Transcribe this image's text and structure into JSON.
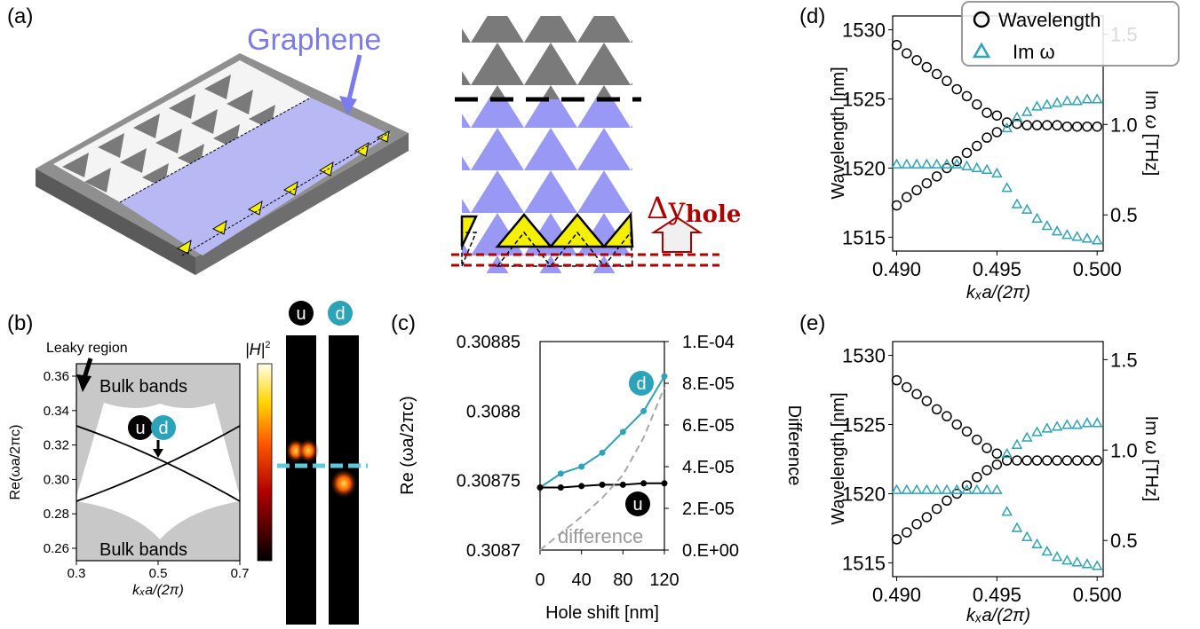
{
  "panels": {
    "a": {
      "label": "(a)",
      "graphene_label": "Graphene",
      "delta_y": "Δy",
      "delta_sub": "hole"
    },
    "b": {
      "label": "(b)",
      "leaky_region": "Leaky region",
      "bulk_top": "Bulk bands",
      "bulk_bottom": "Bulk bands",
      "ylabel": "Re(ωa/2πc)",
      "xlabel": "kₓa/(2π)",
      "yticks": [
        "0.36",
        "0.34",
        "0.32",
        "0.30",
        "0.28",
        "0.26"
      ],
      "xticks": [
        "0.3",
        "0.5",
        "0.7"
      ],
      "u_label": "u",
      "d_label": "d",
      "colorbar_label": "|H|",
      "colorbar_sup": "2"
    },
    "c": {
      "label": "(c)",
      "ylabel_left": "Re (ωa/2πc)",
      "ylabel_right": "Difference",
      "xlabel": "Hole shift [nm]",
      "yticks_left": [
        "0.30885",
        "0.3088",
        "0.30875",
        "0.3087"
      ],
      "yticks_right": [
        "1.E-04",
        "8.E-05",
        "6.E-05",
        "4.E-05",
        "2.E-05",
        "0.E+00"
      ],
      "xticks": [
        "0",
        "40",
        "80",
        "120"
      ],
      "difference_label": "difference",
      "u_label": "u",
      "d_label": "d"
    },
    "d": {
      "label": "(d)",
      "legend_wavelength": "Wavelength",
      "legend_im": "Im ω",
      "ylabel_left": "Wavelength [nm]",
      "ylabel_right": "Im ω [THz]",
      "xlabel": "kₓa/(2π)",
      "yticks_left": [
        "1530",
        "1525",
        "1520",
        "1515"
      ],
      "yticks_right": [
        "1.5",
        "1.0",
        "0.5"
      ],
      "xticks": [
        "0.490",
        "0.495",
        "0.500"
      ]
    },
    "e": {
      "label": "(e)",
      "ylabel_left": "Wavelength [nm]",
      "ylabel_right": "Im ω [THz]",
      "xlabel": "kₓa/(2π)",
      "yticks_left": [
        "1530",
        "1525",
        "1520",
        "1515"
      ],
      "yticks_right": [
        "1.5",
        "1.0",
        "0.5"
      ],
      "xticks": [
        "0.490",
        "0.495",
        "0.500"
      ]
    }
  },
  "colors": {
    "graphene": "#9999f5",
    "teal": "#2ba3b8",
    "dark_red": "#b00000",
    "gray": "#7f7f7f",
    "yellow": "#f5f000"
  },
  "chart_data": [
    {
      "panel": "c",
      "type": "line",
      "x": [
        0,
        20,
        40,
        60,
        80,
        100,
        120
      ],
      "series": [
        {
          "name": "d",
          "axis": "left",
          "values": [
            0.308745,
            0.308755,
            0.30876,
            0.30877,
            0.308785,
            0.3088,
            0.308825
          ]
        },
        {
          "name": "u",
          "axis": "left",
          "values": [
            0.308745,
            0.308745,
            0.308746,
            0.308747,
            0.308747,
            0.308748,
            0.308748
          ]
        },
        {
          "name": "difference",
          "axis": "right",
          "values": [
            0.0,
            8e-06,
            1.6e-05,
            2.5e-05,
            3.6e-05,
            5.4e-05,
            7.8e-05
          ]
        }
      ],
      "ylim_left": [
        0.3087,
        0.30885
      ],
      "ylim_right": [
        0,
        0.0001
      ],
      "xlim": [
        0,
        120
      ]
    },
    {
      "panel": "d",
      "type": "scatter",
      "xlim": [
        0.4898,
        0.5003
      ],
      "ylim_left": [
        1514,
        1531
      ],
      "ylim_right": [
        0.3,
        1.6
      ],
      "series": [
        {
          "name": "Wavelength",
          "axis": "left",
          "x": [
            0.49,
            0.4905,
            0.491,
            0.4915,
            0.492,
            0.4925,
            0.493,
            0.4935,
            0.494,
            0.4945,
            0.495,
            0.4955,
            0.496,
            0.4965,
            0.497,
            0.4975,
            0.498,
            0.4985,
            0.499,
            0.4995,
            0.5
          ],
          "values": [
            1528.9,
            1528.3,
            1527.8,
            1527.3,
            1526.8,
            1526.3,
            1525.7,
            1525.2,
            1524.6,
            1524.0,
            1523.8,
            1523.3,
            1523.2,
            1523.1,
            1523.1,
            1523.1,
            1523.1,
            1523.0,
            1523.0,
            1523.0,
            1523.0
          ]
        },
        {
          "name": "Wavelength (lower branch)",
          "axis": "left",
          "x": [
            0.49,
            0.4905,
            0.491,
            0.4915,
            0.492,
            0.4925,
            0.493,
            0.4935,
            0.494,
            0.4945,
            0.495
          ],
          "values": [
            1517.3,
            1517.9,
            1518.4,
            1518.9,
            1519.4,
            1520.0,
            1520.5,
            1521.1,
            1521.6,
            1522.2,
            1522.6
          ]
        },
        {
          "name": "Im ω",
          "axis": "right",
          "x": [
            0.49,
            0.4905,
            0.491,
            0.4915,
            0.492,
            0.4925,
            0.493,
            0.4935,
            0.494,
            0.4945,
            0.495,
            0.4955,
            0.496,
            0.4965,
            0.497,
            0.4975,
            0.498,
            0.4985,
            0.499,
            0.4995,
            0.5
          ],
          "values": [
            0.78,
            0.78,
            0.78,
            0.78,
            0.78,
            0.78,
            0.78,
            0.77,
            0.76,
            0.75,
            0.73,
            0.65,
            0.56,
            0.53,
            0.48,
            0.44,
            0.41,
            0.39,
            0.38,
            0.37,
            0.36
          ]
        },
        {
          "name": "Im ω (upper branch)",
          "axis": "right",
          "x": [
            0.4955,
            0.496,
            0.4965,
            0.497,
            0.4975,
            0.498,
            0.4985,
            0.499,
            0.4995,
            0.5
          ],
          "values": [
            0.98,
            1.04,
            1.07,
            1.1,
            1.11,
            1.12,
            1.13,
            1.13,
            1.14,
            1.14
          ]
        }
      ]
    },
    {
      "panel": "e",
      "type": "scatter",
      "xlim": [
        0.4898,
        0.5003
      ],
      "ylim_left": [
        1514,
        1531
      ],
      "ylim_right": [
        0.3,
        1.6
      ],
      "series": [
        {
          "name": "Wavelength",
          "axis": "left",
          "x": [
            0.49,
            0.4905,
            0.491,
            0.4915,
            0.492,
            0.4925,
            0.493,
            0.4935,
            0.494,
            0.4945,
            0.495,
            0.4955,
            0.496,
            0.4965,
            0.497,
            0.4975,
            0.498,
            0.4985,
            0.499,
            0.4995,
            0.5
          ],
          "values": [
            1528.2,
            1527.7,
            1527.2,
            1526.7,
            1526.1,
            1525.6,
            1525.0,
            1524.5,
            1523.9,
            1523.3,
            1522.9,
            1522.4,
            1522.4,
            1522.4,
            1522.4,
            1522.4,
            1522.4,
            1522.4,
            1522.4,
            1522.4,
            1522.4
          ]
        },
        {
          "name": "Wavelength (lower branch)",
          "axis": "left",
          "x": [
            0.49,
            0.4905,
            0.491,
            0.4915,
            0.492,
            0.4925,
            0.493,
            0.4935,
            0.494,
            0.4945,
            0.495
          ],
          "values": [
            1516.7,
            1517.2,
            1517.8,
            1518.3,
            1518.9,
            1519.5,
            1520.0,
            1520.6,
            1521.2,
            1521.7,
            1522.1
          ]
        },
        {
          "name": "Im ω",
          "axis": "right",
          "x": [
            0.49,
            0.4905,
            0.491,
            0.4915,
            0.492,
            0.4925,
            0.493,
            0.4935,
            0.494,
            0.4945,
            0.495,
            0.4955,
            0.496,
            0.4965,
            0.497,
            0.4975,
            0.498,
            0.4985,
            0.499,
            0.4995,
            0.5
          ],
          "values": [
            0.78,
            0.78,
            0.78,
            0.78,
            0.78,
            0.78,
            0.78,
            0.78,
            0.78,
            0.78,
            0.78,
            0.66,
            0.57,
            0.52,
            0.48,
            0.44,
            0.41,
            0.39,
            0.38,
            0.37,
            0.36
          ]
        },
        {
          "name": "Im ω (upper branch)",
          "axis": "right",
          "x": [
            0.4955,
            0.496,
            0.4965,
            0.497,
            0.4975,
            0.498,
            0.4985,
            0.499,
            0.4995,
            0.5
          ],
          "values": [
            0.98,
            1.03,
            1.07,
            1.1,
            1.12,
            1.13,
            1.14,
            1.14,
            1.15,
            1.15
          ]
        }
      ]
    }
  ]
}
